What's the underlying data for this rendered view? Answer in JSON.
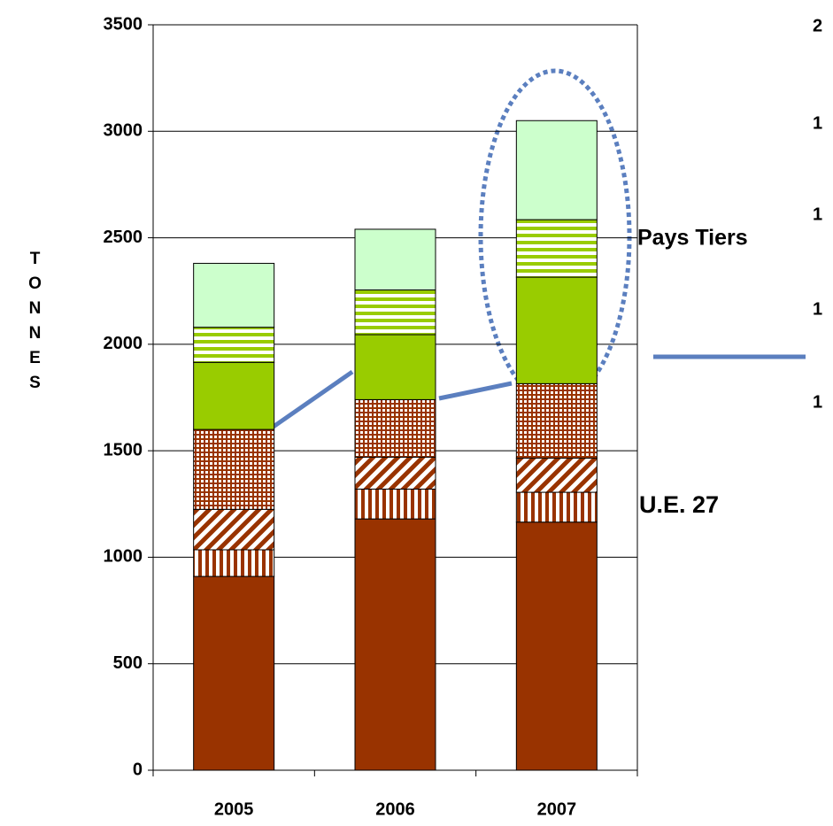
{
  "chart_data": {
    "type": "stacked_bar",
    "y_label": "TONNES",
    "categories": [
      "2005",
      "2006",
      "2007"
    ],
    "series": [
      {
        "color": "#993300",
        "pattern": "solid",
        "values": [
          910,
          1180,
          1165
        ]
      },
      {
        "color": "#993300",
        "pattern": "vertical",
        "values": [
          125,
          140,
          140
        ]
      },
      {
        "color": "#993300",
        "pattern": "diagonal",
        "values": [
          190,
          150,
          160
        ]
      },
      {
        "color": "#993300",
        "pattern": "grid",
        "values": [
          375,
          270,
          350
        ]
      },
      {
        "color": "#99cc00",
        "pattern": "solid",
        "values": [
          315,
          305,
          500
        ]
      },
      {
        "color": "#99cc00",
        "pattern": "horizontal",
        "values": [
          165,
          210,
          270
        ]
      },
      {
        "color": "#ccffcc",
        "pattern": "solid",
        "values": [
          300,
          285,
          465
        ]
      }
    ],
    "ylim": [
      0,
      3500
    ],
    "yticks": [
      0,
      500,
      1000,
      1500,
      2000,
      2500,
      3000,
      3500
    ],
    "grid": true,
    "annotations": [
      {
        "text": "Pays Tiers",
        "color": "#9ab81e"
      },
      {
        "text": "U.E. 27",
        "color": "#993300"
      }
    ],
    "right_fragments": [
      "2",
      "1",
      "1",
      "1",
      "1"
    ]
  }
}
